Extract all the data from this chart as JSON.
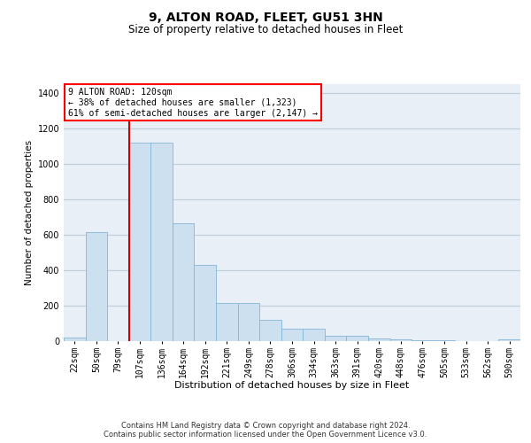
{
  "title": "9, ALTON ROAD, FLEET, GU51 3HN",
  "subtitle": "Size of property relative to detached houses in Fleet",
  "xlabel": "Distribution of detached houses by size in Fleet",
  "ylabel": "Number of detached properties",
  "categories": [
    "22sqm",
    "50sqm",
    "79sqm",
    "107sqm",
    "136sqm",
    "164sqm",
    "192sqm",
    "221sqm",
    "249sqm",
    "278sqm",
    "306sqm",
    "334sqm",
    "363sqm",
    "391sqm",
    "420sqm",
    "448sqm",
    "476sqm",
    "505sqm",
    "533sqm",
    "562sqm",
    "590sqm"
  ],
  "values": [
    18,
    615,
    0,
    1120,
    1120,
    665,
    430,
    215,
    215,
    120,
    68,
    68,
    28,
    30,
    15,
    12,
    5,
    5,
    0,
    0,
    8
  ],
  "bar_color": "#cce0f0",
  "bar_edgecolor": "#85b5d8",
  "vline_x": 2.5,
  "vline_color": "#cc0000",
  "vline_linewidth": 1.5,
  "annotation_text": "9 ALTON ROAD: 120sqm\n← 38% of detached houses are smaller (1,323)\n61% of semi-detached houses are larger (2,147) →",
  "ylim_max": 1450,
  "yticks": [
    0,
    200,
    400,
    600,
    800,
    1000,
    1200,
    1400
  ],
  "grid_color": "#c0cedc",
  "bg_color": "#e8eff6",
  "footer_line1": "Contains HM Land Registry data © Crown copyright and database right 2024.",
  "footer_line2": "Contains public sector information licensed under the Open Government Licence v3.0.",
  "title_fontsize": 10,
  "subtitle_fontsize": 8.5,
  "xlabel_fontsize": 8,
  "ylabel_fontsize": 7.5,
  "annot_fontsize": 7,
  "tick_fontsize": 7,
  "footer_fontsize": 6
}
